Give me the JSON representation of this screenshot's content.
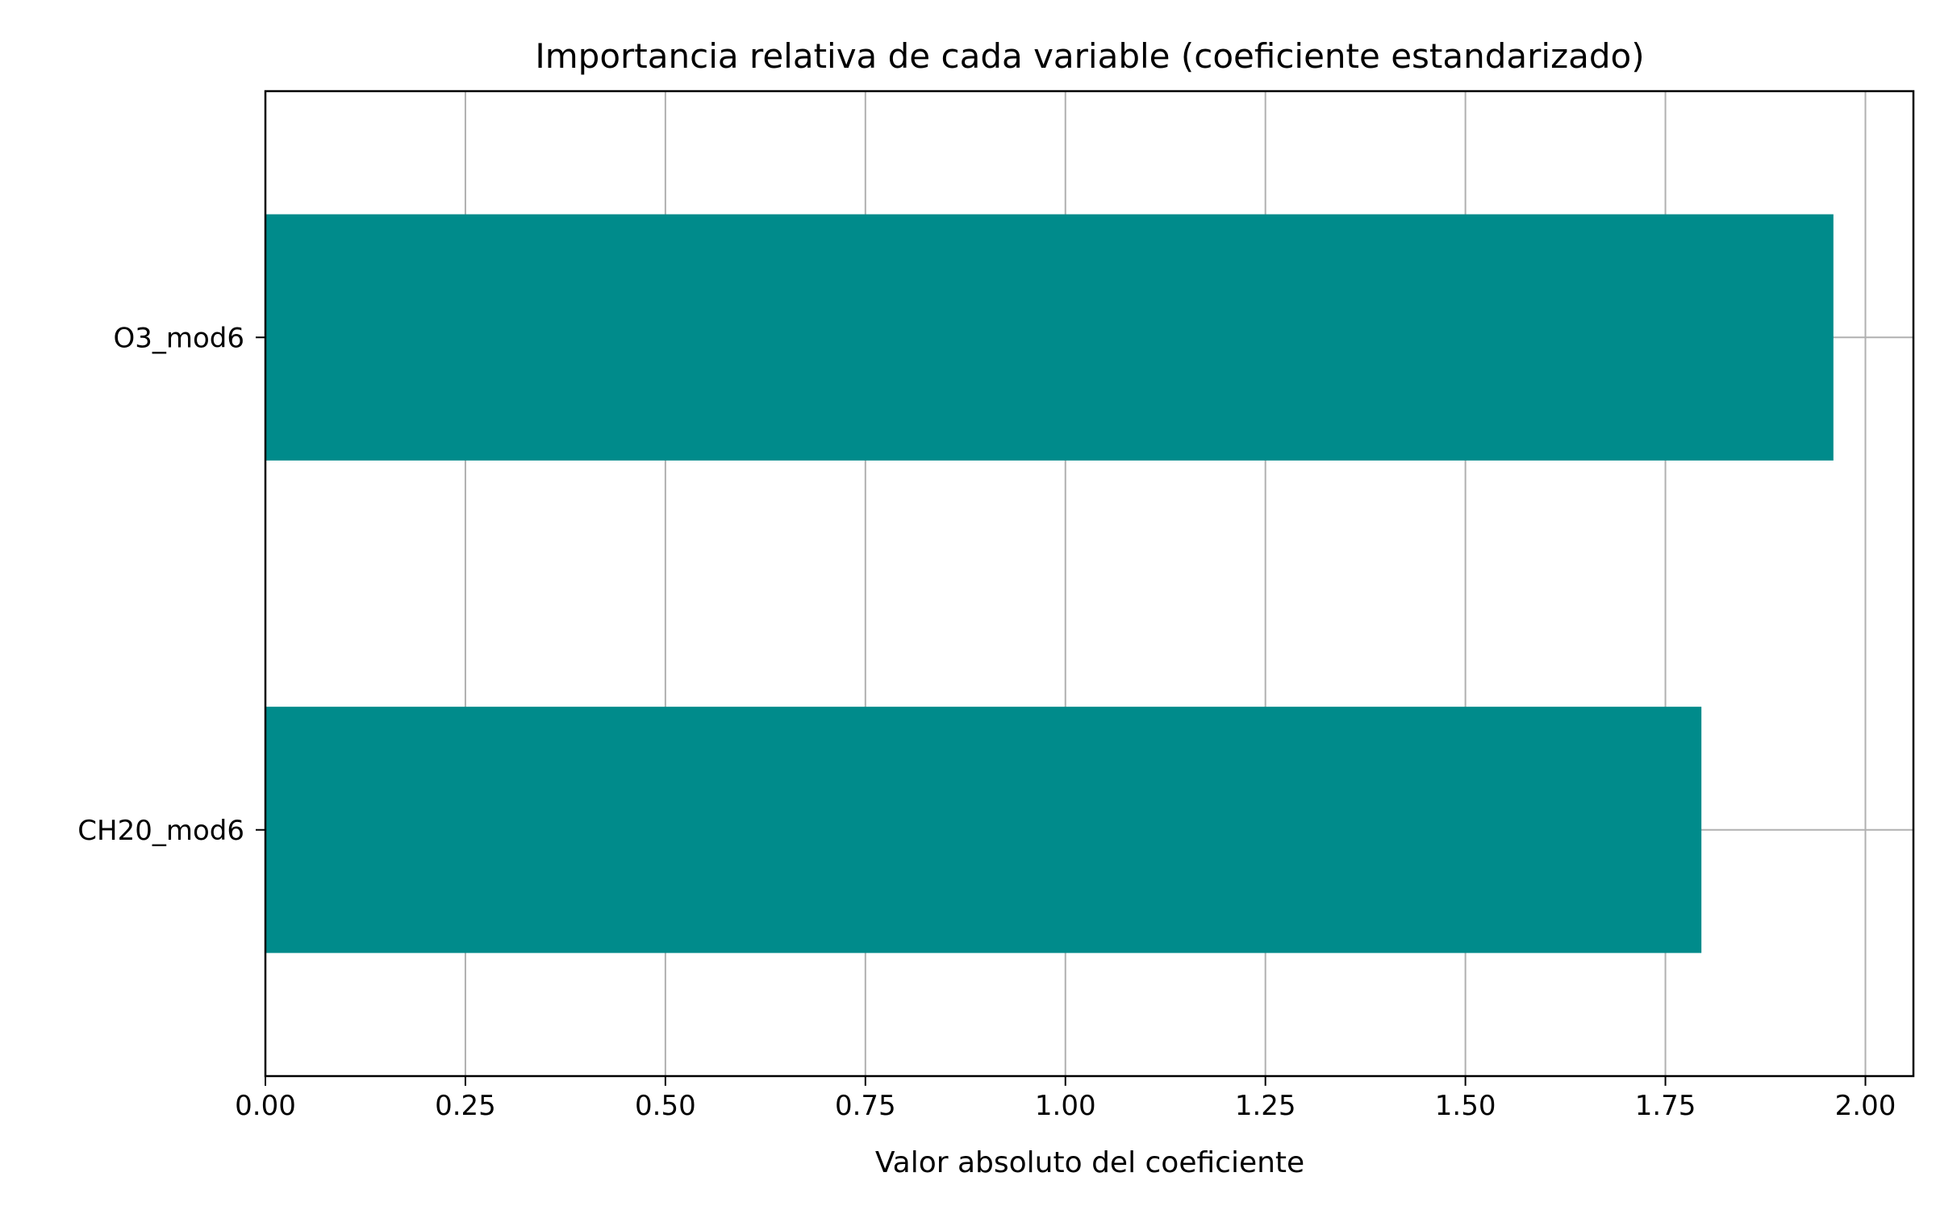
{
  "chart_data": {
    "type": "bar",
    "orientation": "horizontal",
    "title": "Importancia relativa de cada variable (coeficiente estandarizado)",
    "xlabel": "Valor absoluto del coeficiente",
    "ylabel": "",
    "categories": [
      "O3_mod6",
      "CH20_mod6"
    ],
    "values": [
      1.96,
      1.795
    ],
    "xlim": [
      0,
      2.06
    ],
    "xticks": [
      0.0,
      0.25,
      0.5,
      0.75,
      1.0,
      1.25,
      1.5,
      1.75,
      2.0
    ],
    "xtick_labels": [
      "0.00",
      "0.25",
      "0.50",
      "0.75",
      "1.00",
      "1.25",
      "1.50",
      "1.75",
      "2.00"
    ],
    "grid": true,
    "colors": {
      "bar": "#008b8b",
      "grid": "#b0b0b0",
      "axes": "#000000"
    }
  }
}
